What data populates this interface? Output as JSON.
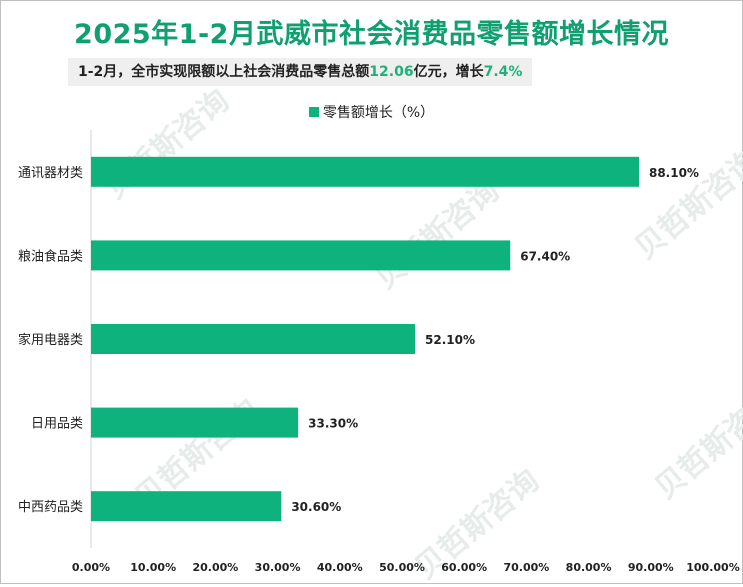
{
  "title": "2025年1-2月武威市社会消费品零售额增长情况",
  "subtitle": {
    "prefix": "1-2月，全市实现限额以上社会消费品零售总额",
    "amount": "12.06",
    "middle": "亿元，增长",
    "growth": "7.4%"
  },
  "watermark": "贝哲斯咨询",
  "colors": {
    "bar": "#0db27c",
    "title": "#10a070",
    "highlight": "#1fb07a"
  },
  "chart_data": {
    "type": "bar",
    "orientation": "horizontal",
    "legend": "零售额增长（%）",
    "legend_position": "top",
    "categories": [
      "通讯器材类",
      "粮油食品类",
      "家用电器类",
      "日用品类",
      "中西药品类"
    ],
    "values": [
      88.1,
      67.4,
      52.1,
      33.3,
      30.6
    ],
    "value_labels": [
      "88.10%",
      "67.40%",
      "52.10%",
      "33.30%",
      "30.60%"
    ],
    "xlim": [
      0,
      100
    ],
    "x_ticks": [
      "0.00%",
      "10.00%",
      "20.00%",
      "30.00%",
      "40.00%",
      "50.00%",
      "60.00%",
      "70.00%",
      "80.00%",
      "90.00%",
      "100.00%"
    ],
    "grid": false
  }
}
